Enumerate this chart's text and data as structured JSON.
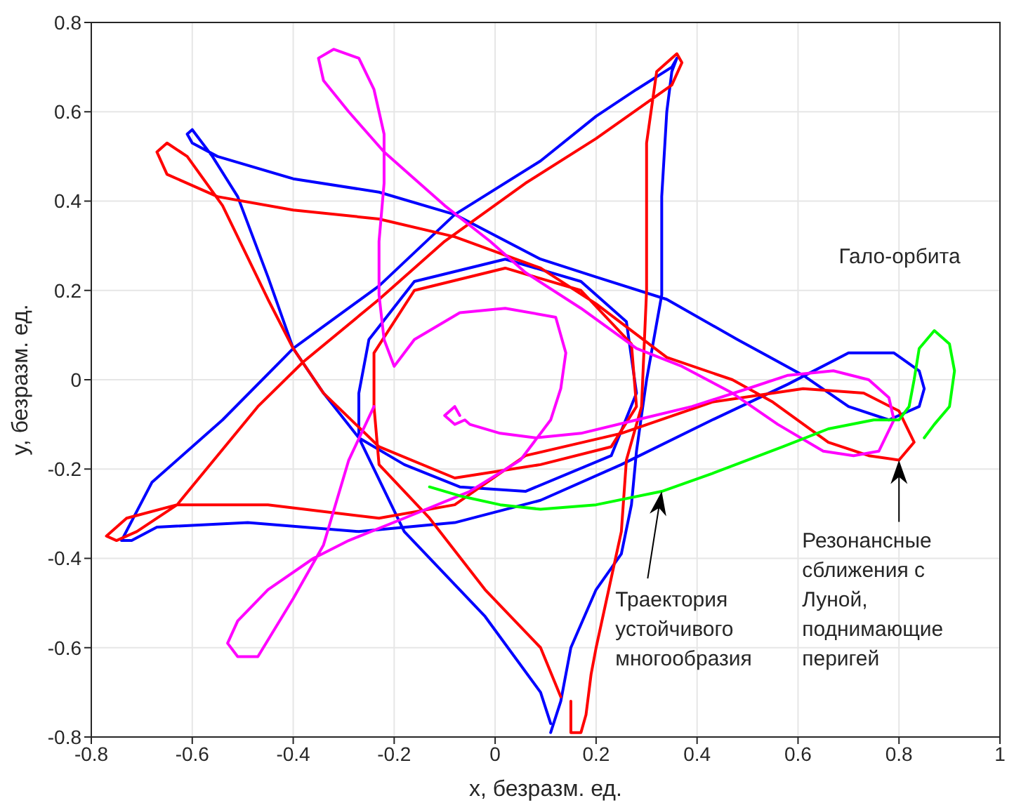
{
  "chart_data": {
    "type": "line",
    "xlabel": "x, безразм. ед.",
    "ylabel": "y, безразм. ед.",
    "xlim": [
      -0.8,
      1
    ],
    "xticks": [
      -0.8,
      -0.6,
      -0.4,
      -0.2,
      0,
      0.2,
      0.4,
      0.6,
      0.8,
      1
    ],
    "ylim": [
      -0.8,
      0.8
    ],
    "yticks": [
      -0.8,
      -0.6,
      -0.4,
      -0.2,
      0,
      0.2,
      0.4,
      0.6,
      0.8
    ],
    "grid": true,
    "marker": "none",
    "line_style": "solid",
    "annotations": [
      {
        "text": "Гало-орбита",
        "x": 0.87,
        "y": 0.11
      },
      {
        "text": "Траектория\nустойчивого\nмногообразия",
        "x": 0.33,
        "y": -0.25
      },
      {
        "text": "Резонансные\nсближения с\nЛуной,\nподнимающие\nперигей",
        "x": 0.8,
        "y": -0.18
      }
    ],
    "series": [
      {
        "color": "#0000ff",
        "x": [
          0.11,
          0.13,
          0.15,
          0.2,
          0.25,
          0.27,
          0.28,
          0.3,
          0.33,
          0.33,
          0.34,
          0.35,
          0.36,
          0.35,
          0.28,
          0.2,
          0.09,
          -0.08,
          -0.23,
          -0.4,
          -0.54,
          -0.68,
          -0.74,
          -0.72,
          -0.67,
          -0.49,
          -0.27,
          -0.08,
          0.09,
          0.25,
          0.43,
          0.58,
          0.7,
          0.79,
          0.84,
          0.85,
          0.84,
          0.78,
          0.7,
          0.61,
          0.48,
          0.34,
          0.2,
          0.09,
          -0.08,
          -0.23,
          -0.4,
          -0.55,
          -0.6,
          -0.61,
          -0.6,
          -0.56,
          -0.51,
          -0.45,
          -0.4,
          -0.34,
          -0.27,
          -0.18,
          -0.07,
          0.06,
          0.23,
          0.28,
          0.26,
          0.17,
          0.02,
          -0.16,
          -0.25,
          -0.27,
          -0.27,
          -0.18,
          -0.02,
          0.09,
          0.11
        ],
        "values": [
          -0.79,
          -0.72,
          -0.6,
          -0.47,
          -0.39,
          -0.28,
          -0.16,
          0,
          0.19,
          0.41,
          0.6,
          0.69,
          0.72,
          0.7,
          0.65,
          0.59,
          0.49,
          0.37,
          0.21,
          0.07,
          -0.09,
          -0.23,
          -0.36,
          -0.36,
          -0.33,
          -0.32,
          -0.34,
          -0.32,
          -0.27,
          -0.19,
          -0.09,
          -0.01,
          0.06,
          0.06,
          0.02,
          -0.02,
          -0.06,
          -0.09,
          -0.06,
          0.01,
          0.09,
          0.18,
          0.23,
          0.27,
          0.37,
          0.42,
          0.45,
          0.5,
          0.53,
          0.55,
          0.56,
          0.5,
          0.41,
          0.23,
          0.07,
          -0.03,
          -0.13,
          -0.19,
          -0.24,
          -0.25,
          -0.17,
          -0.03,
          0.13,
          0.22,
          0.27,
          0.22,
          0.09,
          -0.03,
          -0.13,
          -0.34,
          -0.53,
          -0.7,
          -0.77
        ]
      },
      {
        "color": "#ff0000",
        "x": [
          0.15,
          0.15,
          0.17,
          0.18,
          0.19,
          0.2,
          0.25,
          0.26,
          0.29,
          0.3,
          0.3,
          0.32,
          0.36,
          0.37,
          0.35,
          0.2,
          0.06,
          -0.1,
          -0.23,
          -0.38,
          -0.47,
          -0.63,
          -0.73,
          -0.77,
          -0.75,
          -0.71,
          -0.63,
          -0.45,
          -0.23,
          -0.08,
          0.06,
          0.25,
          0.43,
          0.61,
          0.73,
          0.8,
          0.83,
          0.8,
          0.74,
          0.66,
          0.55,
          0.47,
          0.34,
          0.2,
          0.09,
          -0.08,
          -0.23,
          -0.4,
          -0.55,
          -0.65,
          -0.67,
          -0.65,
          -0.61,
          -0.54,
          -0.45,
          -0.4,
          -0.34,
          -0.23,
          -0.08,
          0.09,
          0.23,
          0.28,
          0.27,
          0.17,
          0.02,
          -0.16,
          -0.24,
          -0.24,
          -0.23,
          -0.13,
          -0.02,
          0.09,
          0.13
        ],
        "values": [
          -0.72,
          -0.79,
          -0.79,
          -0.75,
          -0.66,
          -0.6,
          -0.34,
          -0.18,
          -0.06,
          0.2,
          0.53,
          0.69,
          0.73,
          0.71,
          0.66,
          0.54,
          0.44,
          0.31,
          0.18,
          0.04,
          -0.06,
          -0.28,
          -0.31,
          -0.35,
          -0.36,
          -0.34,
          -0.28,
          -0.28,
          -0.31,
          -0.28,
          -0.17,
          -0.12,
          -0.05,
          -0.02,
          -0.03,
          -0.07,
          -0.14,
          -0.18,
          -0.17,
          -0.14,
          -0.05,
          0,
          0.05,
          0.17,
          0.25,
          0.32,
          0.36,
          0.38,
          0.41,
          0.46,
          0.51,
          0.53,
          0.5,
          0.39,
          0.18,
          0.07,
          -0.03,
          -0.15,
          -0.22,
          -0.19,
          -0.15,
          -0.06,
          0.08,
          0.2,
          0.25,
          0.2,
          0.06,
          -0.06,
          -0.19,
          -0.31,
          -0.47,
          -0.6,
          -0.71
        ]
      },
      {
        "color": "#ff00ff",
        "x": [
          -0.07,
          -0.08,
          -0.1,
          -0.08,
          -0.06,
          -0.05,
          0.01,
          0.08,
          0.17,
          0.28,
          0.39,
          0.5,
          0.58,
          0.67,
          0.74,
          0.78,
          0.79,
          0.76,
          0.71,
          0.65,
          0.56,
          0.47,
          0.37,
          0.28,
          0.17,
          0.06,
          -0.01,
          -0.1,
          -0.22,
          -0.29,
          -0.34,
          -0.35,
          -0.32,
          -0.27,
          -0.24,
          -0.22,
          -0.22,
          -0.23,
          -0.23,
          -0.22,
          -0.2,
          -0.16,
          -0.07,
          0.02,
          0.12,
          0.14,
          0.13,
          0.11,
          0.05,
          -0.05,
          -0.18,
          -0.29,
          -0.36,
          -0.45,
          -0.51,
          -0.53,
          -0.51,
          -0.47,
          -0.4,
          -0.34,
          -0.29,
          -0.24
        ],
        "values": [
          -0.08,
          -0.06,
          -0.08,
          -0.1,
          -0.09,
          -0.1,
          -0.12,
          -0.13,
          -0.12,
          -0.09,
          -0.06,
          -0.02,
          0.01,
          0.02,
          0,
          -0.04,
          -0.09,
          -0.16,
          -0.17,
          -0.16,
          -0.1,
          -0.03,
          0.03,
          0.07,
          0.16,
          0.24,
          0.31,
          0.39,
          0.51,
          0.6,
          0.67,
          0.72,
          0.74,
          0.72,
          0.65,
          0.55,
          0.44,
          0.31,
          0.19,
          0.09,
          0.03,
          0.09,
          0.15,
          0.16,
          0.14,
          0.06,
          -0.02,
          -0.09,
          -0.18,
          -0.25,
          -0.31,
          -0.36,
          -0.4,
          -0.47,
          -0.54,
          -0.59,
          -0.62,
          -0.62,
          -0.49,
          -0.37,
          -0.18,
          -0.06
        ]
      },
      {
        "color": "#00ff00",
        "x": [
          -0.13,
          -0.07,
          0.01,
          0.09,
          0.2,
          0.33,
          0.43,
          0.57,
          0.66,
          0.75,
          0.8,
          0.82,
          0.83,
          0.84,
          0.87,
          0.9,
          0.91,
          0.9,
          0.87,
          0.85
        ],
        "values": [
          -0.24,
          -0.26,
          -0.28,
          -0.29,
          -0.28,
          -0.25,
          -0.21,
          -0.15,
          -0.11,
          -0.09,
          -0.09,
          -0.06,
          0,
          0.07,
          0.11,
          0.08,
          0.02,
          -0.06,
          -0.1,
          -0.13
        ]
      }
    ]
  }
}
